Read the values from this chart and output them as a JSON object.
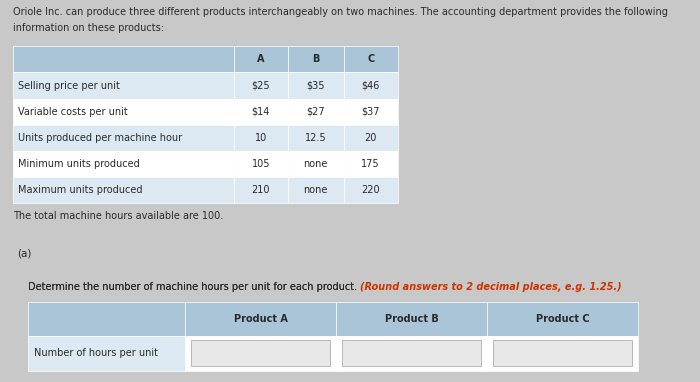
{
  "header_text_line1": "Oriole Inc. can produce three different products interchangeably on two machines. The accounting department provides the following",
  "header_text_line2": "information on these products:",
  "table1_header": [
    "",
    "A",
    "B",
    "C"
  ],
  "table1_rows": [
    [
      "Selling price per unit",
      "$25",
      "$35",
      "$46"
    ],
    [
      "Variable costs per unit",
      "$14",
      "$27",
      "$37"
    ],
    [
      "Units produced per machine hour",
      "10",
      "12.5",
      "20"
    ],
    [
      "Minimum units produced",
      "105",
      "none",
      "175"
    ],
    [
      "Maximum units produced",
      "210",
      "none",
      "220"
    ]
  ],
  "footer_text": "The total machine hours available are 100.",
  "section_label": "(a)",
  "instruction_normal": "Determine the number of machine hours per unit for each product. ",
  "instruction_bold": "(Round answers to 2 decimal places, e.g. 1.25.)",
  "table2_header": [
    "",
    "Product A",
    "Product B",
    "Product C"
  ],
  "table2_row": [
    "Number of hours per unit",
    "",
    "",
    ""
  ],
  "bg_top": "#e2e2e2",
  "bg_bottom": "#e8e8e8",
  "bg_separator": "#c8c8c8",
  "table_header_color": "#aac4d8",
  "table_row_odd": "#dce8f2",
  "table_row_even": "#ffffff",
  "input_box_color": "#e8e8e8",
  "text_color": "#2a2a2a",
  "bold_color": "#cc3300",
  "font_size": 7.0,
  "font_size_small": 6.5
}
